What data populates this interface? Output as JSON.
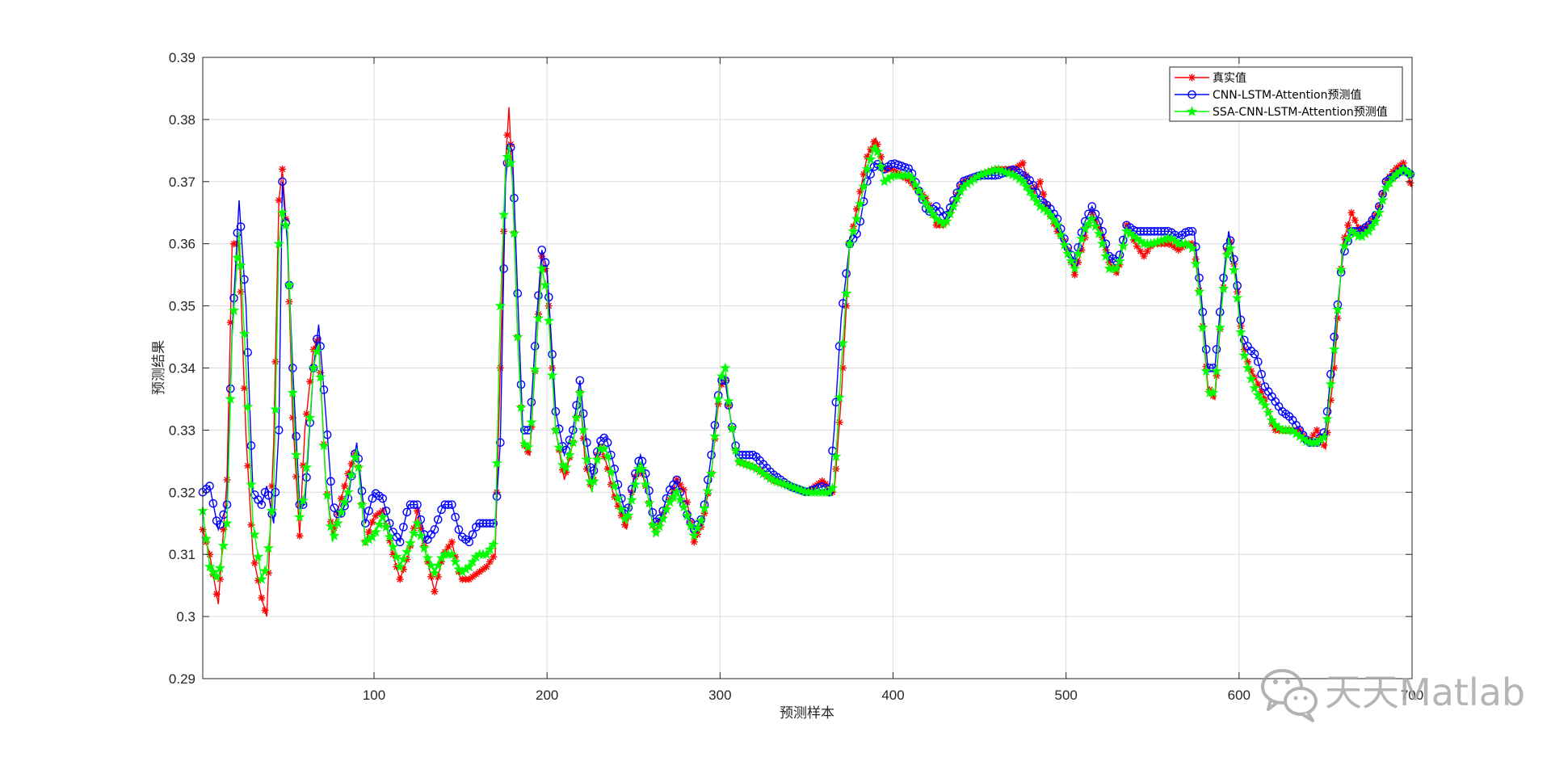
{
  "chart_data": {
    "type": "line",
    "title": "",
    "xlabel": "预测样本",
    "ylabel": "预测结果",
    "xlim": [
      1,
      700
    ],
    "ylim": [
      0.29,
      0.39
    ],
    "xticks": [
      "100",
      "200",
      "300",
      "400",
      "500",
      "600",
      "700"
    ],
    "yticks": [
      "0.29",
      "0.3",
      "0.31",
      "0.32",
      "0.33",
      "0.34",
      "0.35",
      "0.36",
      "0.37",
      "0.38",
      "0.39"
    ],
    "grid": true,
    "legend_position": "top-right",
    "anchors_x": [
      1,
      5,
      10,
      15,
      18,
      22,
      26,
      30,
      35,
      38,
      42,
      45,
      47,
      50,
      53,
      57,
      60,
      65,
      68,
      72,
      76,
      80,
      85,
      90,
      95,
      100,
      105,
      110,
      115,
      120,
      125,
      130,
      135,
      140,
      145,
      150,
      155,
      160,
      165,
      170,
      173,
      176,
      178,
      180,
      183,
      186,
      190,
      194,
      197,
      200,
      205,
      210,
      215,
      219,
      222,
      226,
      230,
      234,
      238,
      242,
      246,
      250,
      254,
      258,
      262,
      266,
      270,
      275,
      280,
      285,
      290,
      295,
      300,
      303,
      306,
      310,
      320,
      330,
      340,
      350,
      360,
      363,
      366,
      370,
      375,
      380,
      385,
      390,
      395,
      400,
      410,
      420,
      425,
      430,
      440,
      450,
      460,
      470,
      475,
      480,
      485,
      490,
      495,
      500,
      505,
      510,
      515,
      520,
      525,
      530,
      535,
      540,
      545,
      550,
      560,
      565,
      570,
      574,
      578,
      582,
      586,
      590,
      594,
      598,
      602,
      606,
      610,
      615,
      620,
      625,
      630,
      635,
      640,
      645,
      650,
      655,
      660,
      665,
      670,
      675,
      680,
      685,
      690,
      695,
      700
    ],
    "series": [
      {
        "name": "真实值",
        "color": "#ff0000",
        "marker": "*",
        "values": [
          0.314,
          0.31,
          0.302,
          0.322,
          0.36,
          0.36,
          0.329,
          0.31,
          0.303,
          0.3,
          0.328,
          0.367,
          0.372,
          0.36,
          0.332,
          0.313,
          0.33,
          0.343,
          0.345,
          0.322,
          0.313,
          0.318,
          0.323,
          0.327,
          0.312,
          0.316,
          0.317,
          0.311,
          0.306,
          0.31,
          0.317,
          0.31,
          0.304,
          0.31,
          0.312,
          0.306,
          0.306,
          0.307,
          0.308,
          0.31,
          0.34,
          0.373,
          0.382,
          0.37,
          0.345,
          0.328,
          0.326,
          0.344,
          0.358,
          0.355,
          0.33,
          0.322,
          0.328,
          0.336,
          0.325,
          0.32,
          0.328,
          0.325,
          0.32,
          0.317,
          0.314,
          0.322,
          0.324,
          0.32,
          0.313,
          0.316,
          0.318,
          0.322,
          0.32,
          0.312,
          0.315,
          0.323,
          0.337,
          0.338,
          0.332,
          0.325,
          0.324,
          0.322,
          0.321,
          0.32,
          0.322,
          0.32,
          0.32,
          0.335,
          0.36,
          0.367,
          0.374,
          0.377,
          0.372,
          0.372,
          0.37,
          0.367,
          0.363,
          0.363,
          0.37,
          0.371,
          0.372,
          0.372,
          0.373,
          0.368,
          0.37,
          0.365,
          0.362,
          0.36,
          0.355,
          0.36,
          0.365,
          0.362,
          0.357,
          0.355,
          0.363,
          0.36,
          0.358,
          0.36,
          0.36,
          0.359,
          0.36,
          0.36,
          0.35,
          0.337,
          0.335,
          0.35,
          0.362,
          0.355,
          0.344,
          0.34,
          0.338,
          0.335,
          0.33,
          0.33,
          0.33,
          0.33,
          0.328,
          0.33,
          0.327,
          0.34,
          0.36,
          0.365,
          0.362,
          0.363,
          0.365,
          0.37,
          0.372,
          0.373,
          0.369
        ]
      },
      {
        "name": "CNN-LSTM-Attention预测值",
        "color": "#0000ff",
        "marker": "o",
        "values": [
          0.32,
          0.321,
          0.314,
          0.318,
          0.346,
          0.367,
          0.35,
          0.32,
          0.318,
          0.321,
          0.315,
          0.33,
          0.37,
          0.36,
          0.34,
          0.318,
          0.318,
          0.34,
          0.347,
          0.333,
          0.318,
          0.316,
          0.319,
          0.328,
          0.315,
          0.32,
          0.319,
          0.314,
          0.312,
          0.318,
          0.318,
          0.312,
          0.314,
          0.318,
          0.318,
          0.313,
          0.312,
          0.315,
          0.315,
          0.315,
          0.328,
          0.37,
          0.376,
          0.375,
          0.352,
          0.33,
          0.33,
          0.348,
          0.359,
          0.356,
          0.333,
          0.326,
          0.33,
          0.338,
          0.33,
          0.322,
          0.328,
          0.329,
          0.325,
          0.32,
          0.316,
          0.322,
          0.326,
          0.322,
          0.315,
          0.316,
          0.32,
          0.322,
          0.317,
          0.314,
          0.316,
          0.326,
          0.338,
          0.338,
          0.332,
          0.326,
          0.326,
          0.323,
          0.321,
          0.32,
          0.321,
          0.32,
          0.33,
          0.348,
          0.36,
          0.362,
          0.37,
          0.373,
          0.372,
          0.373,
          0.372,
          0.365,
          0.366,
          0.364,
          0.37,
          0.371,
          0.371,
          0.372,
          0.371,
          0.37,
          0.367,
          0.366,
          0.364,
          0.36,
          0.357,
          0.363,
          0.366,
          0.363,
          0.358,
          0.357,
          0.363,
          0.362,
          0.362,
          0.362,
          0.362,
          0.361,
          0.362,
          0.362,
          0.352,
          0.34,
          0.34,
          0.352,
          0.362,
          0.356,
          0.345,
          0.343,
          0.342,
          0.337,
          0.335,
          0.333,
          0.332,
          0.33,
          0.328,
          0.328,
          0.33,
          0.345,
          0.358,
          0.362,
          0.362,
          0.363,
          0.365,
          0.37,
          0.371,
          0.372,
          0.371
        ]
      },
      {
        "name": "SSA-CNN-LSTM-Attention预测值",
        "color": "#00ff00",
        "marker": "pentagram",
        "values": [
          0.317,
          0.308,
          0.306,
          0.315,
          0.345,
          0.362,
          0.34,
          0.315,
          0.306,
          0.308,
          0.32,
          0.36,
          0.365,
          0.362,
          0.336,
          0.316,
          0.32,
          0.34,
          0.344,
          0.322,
          0.312,
          0.316,
          0.32,
          0.327,
          0.312,
          0.313,
          0.316,
          0.312,
          0.308,
          0.311,
          0.315,
          0.31,
          0.307,
          0.31,
          0.31,
          0.307,
          0.308,
          0.31,
          0.31,
          0.312,
          0.35,
          0.372,
          0.376,
          0.37,
          0.345,
          0.328,
          0.327,
          0.344,
          0.356,
          0.352,
          0.33,
          0.323,
          0.328,
          0.336,
          0.327,
          0.32,
          0.327,
          0.327,
          0.322,
          0.318,
          0.315,
          0.32,
          0.325,
          0.32,
          0.313,
          0.315,
          0.318,
          0.32,
          0.317,
          0.313,
          0.316,
          0.323,
          0.338,
          0.34,
          0.332,
          0.325,
          0.324,
          0.322,
          0.321,
          0.32,
          0.32,
          0.32,
          0.321,
          0.34,
          0.36,
          0.365,
          0.372,
          0.376,
          0.37,
          0.371,
          0.371,
          0.366,
          0.364,
          0.363,
          0.369,
          0.371,
          0.372,
          0.371,
          0.37,
          0.368,
          0.366,
          0.365,
          0.363,
          0.359,
          0.356,
          0.362,
          0.364,
          0.361,
          0.356,
          0.356,
          0.362,
          0.361,
          0.36,
          0.36,
          0.361,
          0.36,
          0.36,
          0.359,
          0.35,
          0.336,
          0.336,
          0.35,
          0.361,
          0.354,
          0.343,
          0.339,
          0.336,
          0.334,
          0.331,
          0.33,
          0.33,
          0.329,
          0.328,
          0.328,
          0.329,
          0.343,
          0.359,
          0.362,
          0.361,
          0.362,
          0.364,
          0.369,
          0.371,
          0.372,
          0.371
        ]
      }
    ]
  },
  "watermark": {
    "text": "天天Matlab",
    "icon": "wechat-icon"
  },
  "colors": {
    "axes_frame": "#262626",
    "grid": "#dcdcdc",
    "background": "#ffffff"
  }
}
